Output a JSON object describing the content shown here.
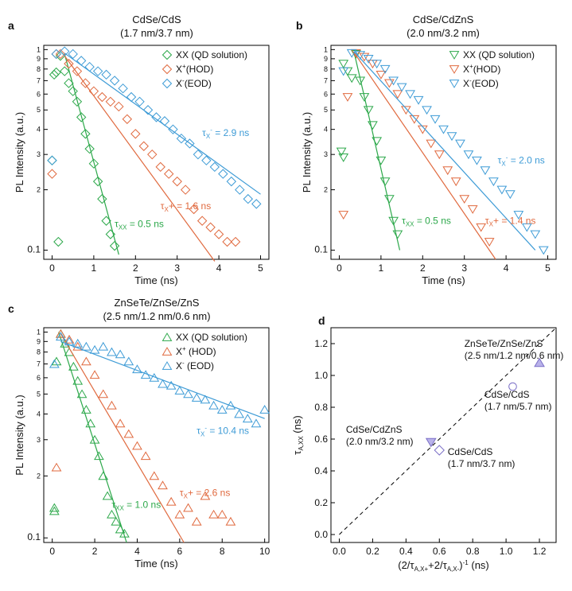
{
  "colors": {
    "green": "#2ca84a",
    "orange": "#e0693e",
    "blue": "#3d9bd6",
    "purple": "#7b6fc7",
    "axis": "#000000"
  },
  "chart_data": [
    {
      "panel": "a",
      "type": "scatter",
      "marker": "diamond",
      "title": "CdSe/CdS",
      "subtitle": "(1.7 nm/3.7 nm)",
      "xlabel": "Time (ns)",
      "ylabel": "PL Intensity (a.u.)",
      "xlim": [
        -0.2,
        5.2
      ],
      "ylim": [
        0.09,
        1.05
      ],
      "yscale": "log",
      "xticks": [
        0,
        1,
        2,
        3,
        4,
        5
      ],
      "yticks": [
        {
          "v": 0.1,
          "l": "0.1"
        },
        {
          "v": 0.2,
          "l": "2"
        },
        {
          "v": 0.3,
          "l": "3"
        },
        {
          "v": 0.4,
          "l": "4"
        },
        {
          "v": 0.5,
          "l": "5"
        },
        {
          "v": 0.6,
          "l": "6"
        },
        {
          "v": 0.7,
          "l": "7"
        },
        {
          "v": 0.8,
          "l": "8"
        },
        {
          "v": 0.9,
          "l": "9"
        },
        {
          "v": 1.0,
          "l": "1"
        }
      ],
      "legend": {
        "position": "top-right",
        "entries": [
          {
            "label": "XX (QD solution)",
            "sup": "",
            "color": "green"
          },
          {
            "label": "X",
            "sup": "+",
            "rest": "(HOD)",
            "color": "orange"
          },
          {
            "label": "X",
            "sup": "-",
            "rest": "(EOD)",
            "color": "blue"
          }
        ]
      },
      "series": [
        {
          "name": "XX (QD solution)",
          "color": "green",
          "x": [
            0.05,
            0.1,
            0.2,
            0.3,
            0.4,
            0.5,
            0.6,
            0.7,
            0.8,
            0.9,
            1.0,
            1.1,
            1.2,
            1.3,
            1.4,
            1.5,
            0.15,
            0.0
          ],
          "y": [
            0.75,
            0.77,
            0.93,
            0.78,
            0.68,
            0.62,
            0.55,
            0.46,
            0.38,
            0.32,
            0.27,
            0.22,
            0.18,
            0.14,
            0.12,
            0.105,
            0.11,
            0.28
          ],
          "fit": {
            "x": [
              0.3,
              1.6
            ],
            "y": [
              0.95,
              0.095
            ]
          }
        },
        {
          "name": "X+ (HOD)",
          "color": "orange",
          "x": [
            0.1,
            0.2,
            0.4,
            0.6,
            0.8,
            1.0,
            1.2,
            1.4,
            1.6,
            1.8,
            2.0,
            2.2,
            2.4,
            2.6,
            2.8,
            3.0,
            3.2,
            3.4,
            3.6,
            3.8,
            4.0,
            4.2,
            4.4,
            0.0
          ],
          "y": [
            0.95,
            0.95,
            0.85,
            0.78,
            0.68,
            0.62,
            0.58,
            0.55,
            0.52,
            0.45,
            0.38,
            0.33,
            0.3,
            0.26,
            0.24,
            0.22,
            0.2,
            0.16,
            0.14,
            0.13,
            0.12,
            0.11,
            0.11,
            0.24
          ],
          "fit": {
            "x": [
              0.3,
              3.9
            ],
            "y": [
              0.93,
              0.088
            ]
          }
        },
        {
          "name": "X- (EOD)",
          "color": "blue",
          "x": [
            0.1,
            0.3,
            0.5,
            0.7,
            0.9,
            1.1,
            1.3,
            1.5,
            1.7,
            1.9,
            2.1,
            2.3,
            2.5,
            2.7,
            2.9,
            3.1,
            3.3,
            3.5,
            3.7,
            3.9,
            4.1,
            4.3,
            4.5,
            4.7,
            4.9,
            0.0
          ],
          "y": [
            0.95,
            0.98,
            0.95,
            0.88,
            0.82,
            0.78,
            0.75,
            0.7,
            0.64,
            0.58,
            0.55,
            0.5,
            0.46,
            0.44,
            0.4,
            0.36,
            0.34,
            0.3,
            0.28,
            0.26,
            0.24,
            0.22,
            0.2,
            0.18,
            0.17,
            0.28
          ],
          "fit": {
            "x": [
              0.3,
              5.0
            ],
            "y": [
              0.96,
              0.19
            ]
          }
        }
      ],
      "annotations": [
        {
          "text": "τ",
          "sub": "X",
          "sup": "-",
          "rest": " = 2.9 ns",
          "color": "blue",
          "x": 3.6,
          "y": 0.37
        },
        {
          "text": "τ",
          "sub": "X",
          "sup": "",
          "rest": "+ = 1.6 ns",
          "color": "orange",
          "x": 2.6,
          "y": 0.16
        },
        {
          "text": "τ",
          "sub": "XX",
          "sup": "",
          "rest": " = 0.5 ns",
          "color": "green",
          "x": 1.5,
          "y": 0.13
        }
      ]
    },
    {
      "panel": "b",
      "type": "scatter",
      "marker": "triangle-down",
      "title": "CdSe/CdZnS",
      "subtitle": "(2.0 nm/3.2 nm)",
      "xlabel": "Time (ns)",
      "ylabel": "PL Intensity (a.u.)",
      "xlim": [
        -0.2,
        5.2
      ],
      "ylim": [
        0.09,
        1.05
      ],
      "yscale": "log",
      "xticks": [
        0,
        1,
        2,
        3,
        4,
        5
      ],
      "yticks": [
        {
          "v": 0.1,
          "l": "0.1"
        },
        {
          "v": 0.2,
          "l": "2"
        },
        {
          "v": 0.3,
          "l": "3"
        },
        {
          "v": 0.4,
          "l": "4"
        },
        {
          "v": 0.5,
          "l": "5"
        },
        {
          "v": 0.6,
          "l": "6"
        },
        {
          "v": 0.7,
          "l": "7"
        },
        {
          "v": 0.8,
          "l": "8"
        },
        {
          "v": 0.9,
          "l": "9"
        },
        {
          "v": 1.0,
          "l": "1"
        }
      ],
      "legend": {
        "position": "top-right",
        "entries": [
          {
            "label": "XX (QD solution)",
            "sup": "",
            "color": "green"
          },
          {
            "label": "X",
            "sup": "+",
            "rest": "(HOD)",
            "color": "orange"
          },
          {
            "label": "X",
            "sup": "-",
            "rest": "(EOD)",
            "color": "blue"
          }
        ]
      },
      "series": [
        {
          "name": "XX (QD solution)",
          "color": "green",
          "x": [
            0.1,
            0.2,
            0.3,
            0.4,
            0.5,
            0.6,
            0.7,
            0.8,
            0.9,
            1.0,
            1.1,
            1.2,
            1.3,
            1.4,
            0.05,
            0.1
          ],
          "y": [
            0.85,
            0.78,
            0.72,
            0.95,
            0.7,
            0.58,
            0.5,
            0.42,
            0.35,
            0.28,
            0.22,
            0.18,
            0.14,
            0.12,
            0.31,
            0.29
          ],
          "fit": {
            "x": [
              0.35,
              1.45
            ],
            "y": [
              0.98,
              0.1
            ]
          }
        },
        {
          "name": "X+ (HOD)",
          "color": "orange",
          "x": [
            0.2,
            0.4,
            0.6,
            0.8,
            1.0,
            1.2,
            1.4,
            1.6,
            1.8,
            2.0,
            2.2,
            2.4,
            2.6,
            2.8,
            3.0,
            3.2,
            3.4,
            3.6,
            0.1
          ],
          "y": [
            0.58,
            0.96,
            0.92,
            0.85,
            0.75,
            0.68,
            0.6,
            0.5,
            0.45,
            0.4,
            0.34,
            0.3,
            0.25,
            0.22,
            0.18,
            0.16,
            0.13,
            0.11,
            0.15
          ],
          "fit": {
            "x": [
              0.35,
              3.75
            ],
            "y": [
              0.97,
              0.09
            ]
          }
        },
        {
          "name": "X- (EOD)",
          "color": "blue",
          "x": [
            0.3,
            0.5,
            0.7,
            0.9,
            1.1,
            1.3,
            1.5,
            1.7,
            1.9,
            2.1,
            2.3,
            2.5,
            2.7,
            2.9,
            3.1,
            3.3,
            3.5,
            3.7,
            3.9,
            4.1,
            4.3,
            4.5,
            4.7,
            4.9,
            0.1
          ],
          "y": [
            0.96,
            0.94,
            0.9,
            0.85,
            0.8,
            0.7,
            0.65,
            0.6,
            0.56,
            0.5,
            0.45,
            0.4,
            0.37,
            0.34,
            0.3,
            0.28,
            0.25,
            0.22,
            0.2,
            0.19,
            0.15,
            0.13,
            0.12,
            0.1,
            0.78
          ],
          "fit": {
            "x": [
              0.35,
              4.7
            ],
            "y": [
              0.98,
              0.1
            ]
          }
        }
      ],
      "annotations": [
        {
          "text": "τ",
          "sub": "X",
          "sup": "-",
          "rest": " = 2.0 ns",
          "color": "blue",
          "x": 3.8,
          "y": 0.27
        },
        {
          "text": "τ",
          "sub": "X",
          "sup": "",
          "rest": "+ = 1.4 ns",
          "color": "orange",
          "x": 3.5,
          "y": 0.135
        },
        {
          "text": "τ",
          "sub": "XX",
          "sup": "",
          "rest": " = 0.5 ns",
          "color": "green",
          "x": 1.5,
          "y": 0.135
        }
      ]
    },
    {
      "panel": "c",
      "type": "scatter",
      "marker": "triangle-up",
      "title": "ZnSeTe/ZnSe/ZnS",
      "subtitle": "(2.5 nm/1.2 nm/0.6 nm)",
      "xlabel": "Time (ns)",
      "ylabel": "PL Intensity (a.u.)",
      "xlim": [
        -0.4,
        10.2
      ],
      "ylim": [
        0.095,
        1.05
      ],
      "yscale": "log",
      "xticks": [
        0,
        2,
        4,
        6,
        8,
        10
      ],
      "yticks": [
        {
          "v": 0.1,
          "l": "0.1"
        },
        {
          "v": 0.2,
          "l": "2"
        },
        {
          "v": 0.3,
          "l": "3"
        },
        {
          "v": 0.4,
          "l": "4"
        },
        {
          "v": 0.5,
          "l": "5"
        },
        {
          "v": 0.6,
          "l": "6"
        },
        {
          "v": 0.7,
          "l": "7"
        },
        {
          "v": 0.8,
          "l": "8"
        },
        {
          "v": 0.9,
          "l": "9"
        },
        {
          "v": 1.0,
          "l": "1"
        }
      ],
      "legend": {
        "position": "top-right",
        "entries": [
          {
            "label": "XX (QD solution)",
            "sup": "",
            "color": "green"
          },
          {
            "label": "X",
            "sup": "+",
            "rest": " (HOD)",
            "color": "orange"
          },
          {
            "label": "X",
            "sup": "-",
            "rest": " (EOD)",
            "color": "blue"
          }
        ]
      },
      "series": [
        {
          "name": "XX (QD solution)",
          "color": "green",
          "x": [
            0.2,
            0.4,
            0.6,
            0.8,
            1.0,
            1.2,
            1.4,
            1.6,
            1.8,
            2.0,
            2.2,
            2.4,
            2.6,
            2.8,
            3.0,
            3.2,
            3.4,
            0.1,
            0.1
          ],
          "y": [
            0.72,
            0.98,
            0.88,
            0.8,
            0.68,
            0.58,
            0.5,
            0.42,
            0.36,
            0.3,
            0.25,
            0.2,
            0.16,
            0.13,
            0.12,
            0.11,
            0.105,
            0.14,
            0.135
          ],
          "fit": {
            "x": [
              0.3,
              3.5
            ],
            "y": [
              1.0,
              0.095
            ]
          }
        },
        {
          "name": "X+ (HOD)",
          "color": "orange",
          "x": [
            0.4,
            0.8,
            1.2,
            1.6,
            2.0,
            2.4,
            2.8,
            3.2,
            3.6,
            4.0,
            4.4,
            4.8,
            5.2,
            5.6,
            6.0,
            6.4,
            6.8,
            7.2,
            7.6,
            8.0,
            8.4,
            0.2
          ],
          "y": [
            0.98,
            0.92,
            0.85,
            0.72,
            0.62,
            0.5,
            0.44,
            0.36,
            0.32,
            0.28,
            0.25,
            0.2,
            0.18,
            0.15,
            0.13,
            0.14,
            0.12,
            0.16,
            0.13,
            0.13,
            0.12,
            0.22
          ],
          "fit": {
            "x": [
              0.4,
              6.2
            ],
            "y": [
              0.98,
              0.095
            ]
          }
        },
        {
          "name": "X- (EOD)",
          "color": "blue",
          "x": [
            0.4,
            0.8,
            1.2,
            1.6,
            2.0,
            2.4,
            2.8,
            3.2,
            3.6,
            4.0,
            4.4,
            4.8,
            5.2,
            5.6,
            6.0,
            6.4,
            6.8,
            7.2,
            7.6,
            8.0,
            8.4,
            8.8,
            9.2,
            9.6,
            10.0,
            0.1
          ],
          "y": [
            0.95,
            0.9,
            0.88,
            0.85,
            0.82,
            0.85,
            0.8,
            0.78,
            0.72,
            0.66,
            0.62,
            0.6,
            0.56,
            0.55,
            0.52,
            0.5,
            0.48,
            0.47,
            0.44,
            0.42,
            0.44,
            0.4,
            0.38,
            0.36,
            0.42,
            0.7
          ],
          "fit": {
            "x": [
              0.4,
              10.0
            ],
            "y": [
              0.9,
              0.38
            ]
          }
        }
      ],
      "annotations": [
        {
          "text": "τ",
          "sub": "X",
          "sup": "-",
          "rest": " = 10.4 ns",
          "color": "blue",
          "x": 6.8,
          "y": 0.32
        },
        {
          "text": "τ",
          "sub": "X",
          "sup": "",
          "rest": "+ = 2.6 ns",
          "color": "orange",
          "x": 6.0,
          "y": 0.16
        },
        {
          "text": "τ",
          "sub": "XX",
          "sup": "",
          "rest": " = 1.0 ns",
          "color": "green",
          "x": 2.8,
          "y": 0.14
        }
      ]
    },
    {
      "panel": "d",
      "type": "scatter",
      "xlabel_parts": [
        "(2/τ",
        "A,X+",
        "+2/τ",
        "A,X-",
        ")",
        "-1",
        " (ns)"
      ],
      "ylabel_parts": [
        "τ",
        "A,XX",
        " (ns)"
      ],
      "xlim": [
        -0.05,
        1.3
      ],
      "ylim": [
        -0.05,
        1.3
      ],
      "xticks": [
        0.0,
        0.2,
        0.4,
        0.6,
        0.8,
        1.0,
        1.2
      ],
      "yticks": [
        0.0,
        0.2,
        0.4,
        0.6,
        0.8,
        1.0,
        1.2
      ],
      "diagonal": true,
      "points": [
        {
          "label": "CdSe/CdS",
          "sub_label": "(1.7 nm/3.7 nm)",
          "x": 0.6,
          "y": 0.53,
          "marker": "diamond",
          "lx": 0.65,
          "ly": 0.5
        },
        {
          "label": "CdSe/CdZnS",
          "sub_label": "(2.0 nm/3.2 nm)",
          "x": 0.55,
          "y": 0.58,
          "marker": "triangle-down",
          "lx": 0.04,
          "ly": 0.64
        },
        {
          "label": "CdSe/CdS",
          "sub_label": "(1.7 nm/5.7 nm)",
          "x": 1.04,
          "y": 0.93,
          "marker": "circle",
          "lx": 0.87,
          "ly": 0.86
        },
        {
          "label": "ZnSeTe/ZnSe/ZnS",
          "sub_label": "(2.5 nm/1.2 nm/0.6 nm)",
          "x": 1.2,
          "y": 1.08,
          "marker": "triangle-up",
          "lx": 0.75,
          "ly": 1.18
        }
      ]
    }
  ],
  "panel_labels": [
    "a",
    "b",
    "c",
    "d"
  ]
}
